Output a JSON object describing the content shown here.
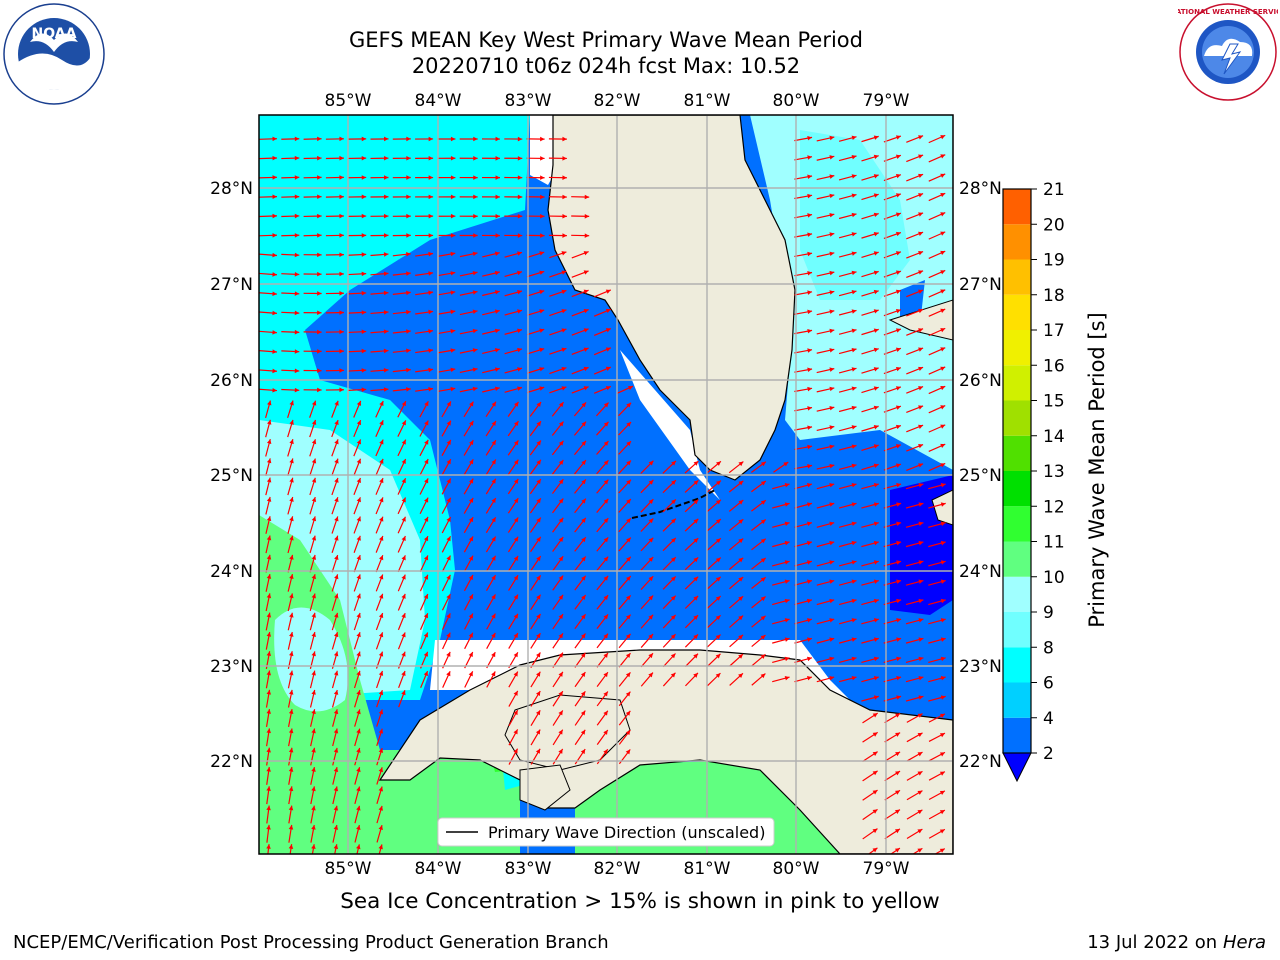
{
  "header": {
    "title_line1": "GEFS MEAN Key West Primary Wave Mean Period",
    "title_line2": "20220710 t06z 024h fcst   Max: 10.52"
  },
  "map": {
    "lon_labels": [
      "85°W",
      "84°W",
      "83°W",
      "82°W",
      "81°W",
      "80°W",
      "79°W"
    ],
    "lat_labels": [
      "28°N",
      "27°N",
      "26°N",
      "25°N",
      "24°N",
      "23°N",
      "22°N"
    ],
    "legend_label": "Primary Wave Direction (unscaled)",
    "arrow_color": "#ff0000",
    "land_color": "#eeecdc",
    "grid_color": "#b0b0b0"
  },
  "colorbar": {
    "title": "Primary Wave Mean Period [s]",
    "ticks": [
      "2",
      "4",
      "6",
      "8",
      "9",
      "10",
      "11",
      "12",
      "13",
      "14",
      "15",
      "16",
      "17",
      "18",
      "19",
      "20",
      "21"
    ],
    "colors": [
      "#0070ff",
      "#00d0ff",
      "#00ffff",
      "#70ffff",
      "#a0ffff",
      "#60ff80",
      "#30ff30",
      "#00e000",
      "#50e000",
      "#a0e000",
      "#d0f000",
      "#f0f000",
      "#ffe000",
      "#ffc000",
      "#ff9000",
      "#ff6000",
      "#ff3000",
      "#ff0000"
    ],
    "under_color": "#0000ff"
  },
  "caption": "Sea Ice Concentration > 15% is shown in pink to yellow",
  "footer": {
    "left": "NCEP/EMC/Verification Post Processing Product Generation Branch",
    "date": "13 Jul 2022 on ",
    "machine": "Hera"
  },
  "logos": {
    "noaa_text": "NOAA",
    "nws_text": "NATIONAL WEATHER SERVICE"
  }
}
